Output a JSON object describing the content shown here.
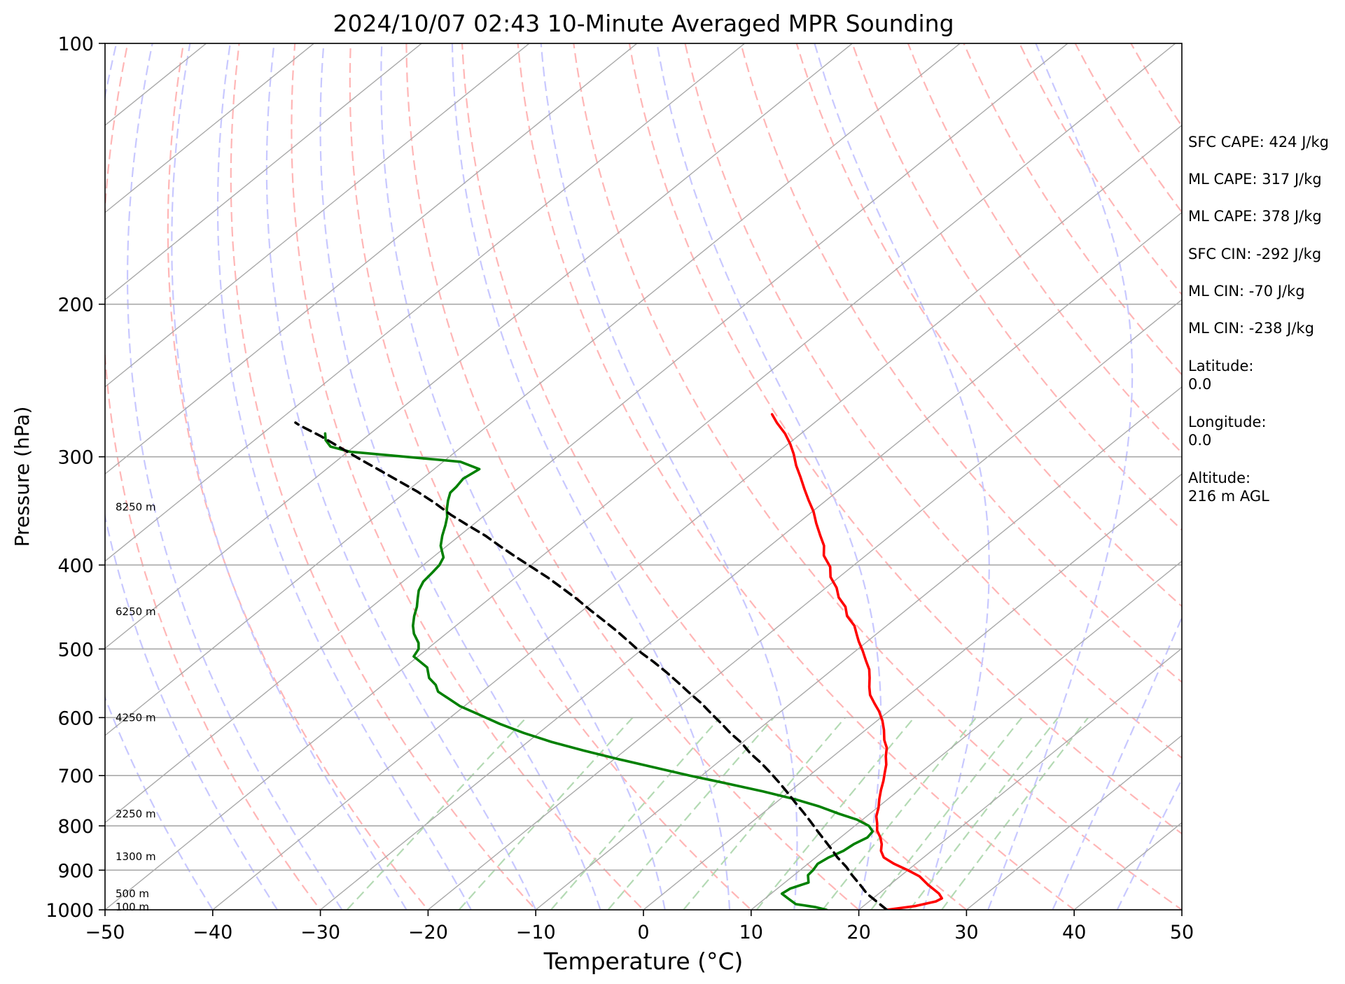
{
  "chart_data": {
    "type": "line",
    "subtype": "skew-t",
    "title": "2024/10/07 02:43 10-Minute Averaged MPR Sounding",
    "xlabel": "Temperature (°C)",
    "ylabel": "Pressure (hPa)",
    "xlim": [
      -50,
      50
    ],
    "ylim": [
      1000,
      100
    ],
    "y_scale": "log",
    "x_ticks": [
      -50,
      -40,
      -30,
      -20,
      -10,
      0,
      10,
      20,
      30,
      40,
      50
    ],
    "x_tick_labels": [
      "−50",
      "−40",
      "−30",
      "−20",
      "−10",
      "0",
      "10",
      "20",
      "30",
      "40",
      "50"
    ],
    "y_ticks": [
      1000,
      900,
      800,
      700,
      600,
      500,
      400,
      300,
      200,
      100
    ],
    "y_tick_labels": [
      "1000",
      "900",
      "800",
      "700",
      "600",
      "500",
      "400",
      "300",
      "200",
      "100"
    ],
    "grid": true,
    "height_labels": [
      {
        "text": "100 m",
        "pressure": 993
      },
      {
        "text": "500 m",
        "pressure": 958
      },
      {
        "text": "1300 m",
        "pressure": 868
      },
      {
        "text": "2250 m",
        "pressure": 775
      },
      {
        "text": "4250 m",
        "pressure": 600
      },
      {
        "text": "6250 m",
        "pressure": 453
      },
      {
        "text": "8250 m",
        "pressure": 343
      }
    ],
    "series": [
      {
        "key": "temperature",
        "color": "#ff0000",
        "style": "solid",
        "points": [
          [
            22.6,
            1000
          ],
          [
            24.8,
            990
          ],
          [
            26.2,
            978
          ],
          [
            26.4,
            970
          ],
          [
            25.6,
            958
          ],
          [
            23.5,
            935
          ],
          [
            21.8,
            915
          ],
          [
            20.0,
            900
          ],
          [
            18.0,
            885
          ],
          [
            16.3,
            870
          ],
          [
            15.3,
            855
          ],
          [
            14.6,
            840
          ],
          [
            13.7,
            825
          ],
          [
            12.6,
            810
          ],
          [
            11.8,
            795
          ],
          [
            10.9,
            780
          ],
          [
            10.1,
            762
          ],
          [
            9.2,
            745
          ],
          [
            8.3,
            727
          ],
          [
            7.5,
            710
          ],
          [
            6.7,
            695
          ],
          [
            5.9,
            680
          ],
          [
            4.9,
            665
          ],
          [
            4.0,
            650
          ],
          [
            2.9,
            637
          ],
          [
            1.7,
            620
          ],
          [
            0.5,
            605
          ],
          [
            -0.9,
            590
          ],
          [
            -2.2,
            578
          ],
          [
            -3.6,
            565
          ],
          [
            -4.6,
            553
          ],
          [
            -5.6,
            540
          ],
          [
            -6.6,
            528
          ],
          [
            -8.0,
            515
          ],
          [
            -9.4,
            502
          ],
          [
            -10.8,
            490
          ],
          [
            -11.9,
            480
          ],
          [
            -13.0,
            470
          ],
          [
            -14.8,
            458
          ],
          [
            -16.0,
            447
          ],
          [
            -17.7,
            436
          ],
          [
            -19.0,
            425
          ],
          [
            -20.8,
            413
          ],
          [
            -22.0,
            402
          ],
          [
            -23.9,
            390
          ],
          [
            -25.0,
            380
          ],
          [
            -26.5,
            370
          ],
          [
            -28.3,
            358
          ],
          [
            -29.9,
            347
          ],
          [
            -31.6,
            337
          ],
          [
            -33.3,
            327
          ],
          [
            -35.0,
            317
          ],
          [
            -36.8,
            307
          ],
          [
            -38.3,
            298
          ],
          [
            -39.8,
            290
          ],
          [
            -41.5,
            282
          ],
          [
            -43.5,
            274
          ],
          [
            -44.9,
            268
          ]
        ]
      },
      {
        "key": "dewpoint",
        "color": "#008000",
        "style": "solid",
        "points": [
          [
            17.0,
            1000
          ],
          [
            15.7,
            993
          ],
          [
            13.5,
            985
          ],
          [
            12.1,
            970
          ],
          [
            11.0,
            958
          ],
          [
            11.2,
            945
          ],
          [
            12.2,
            930
          ],
          [
            11.3,
            912
          ],
          [
            11.2,
            900
          ],
          [
            10.9,
            885
          ],
          [
            11.2,
            870
          ],
          [
            11.8,
            855
          ],
          [
            12.0,
            840
          ],
          [
            12.5,
            825
          ],
          [
            12.3,
            812
          ],
          [
            11.3,
            800
          ],
          [
            9.5,
            787
          ],
          [
            7.2,
            775
          ],
          [
            4.5,
            760
          ],
          [
            1.3,
            745
          ],
          [
            -2.5,
            730
          ],
          [
            -6.7,
            715
          ],
          [
            -11.1,
            700
          ],
          [
            -15.3,
            685
          ],
          [
            -19.6,
            670
          ],
          [
            -23.8,
            655
          ],
          [
            -27.8,
            640
          ],
          [
            -31.4,
            625
          ],
          [
            -34.7,
            610
          ],
          [
            -37.7,
            595
          ],
          [
            -40.4,
            582
          ],
          [
            -42.4,
            570
          ],
          [
            -44.1,
            560
          ],
          [
            -45.1,
            550
          ],
          [
            -46.5,
            540
          ],
          [
            -47.9,
            525
          ],
          [
            -50.4,
            510
          ],
          [
            -50.8,
            500
          ],
          [
            -51.5,
            492
          ],
          [
            -53.0,
            480
          ],
          [
            -54.0,
            470
          ],
          [
            -55.0,
            458
          ],
          [
            -55.8,
            447
          ],
          [
            -56.7,
            437
          ],
          [
            -57.5,
            428
          ],
          [
            -58.1,
            418
          ],
          [
            -58.3,
            408
          ],
          [
            -58.5,
            400
          ],
          [
            -59.0,
            392
          ],
          [
            -60.6,
            380
          ],
          [
            -61.6,
            370
          ],
          [
            -62.5,
            360
          ],
          [
            -63.3,
            352
          ],
          [
            -64.2,
            345
          ],
          [
            -65.1,
            337
          ],
          [
            -65.8,
            330
          ],
          [
            -65.9,
            325
          ],
          [
            -66.2,
            318
          ],
          [
            -65.8,
            310
          ],
          [
            -68.4,
            304
          ],
          [
            -79.8,
            296
          ],
          [
            -82.2,
            292
          ],
          [
            -83.4,
            287
          ],
          [
            -84.2,
            282
          ]
        ]
      },
      {
        "key": "parcel",
        "color": "#000000",
        "style": "dashed",
        "points": [
          [
            22.6,
            1000
          ],
          [
            18.9,
            958
          ],
          [
            17.2,
            935
          ],
          [
            15.4,
            912
          ],
          [
            13.9,
            892
          ],
          [
            12.0,
            870
          ],
          [
            10.5,
            851
          ],
          [
            9.0,
            833
          ],
          [
            7.2,
            812
          ],
          [
            5.4,
            791
          ],
          [
            3.6,
            771
          ],
          [
            1.8,
            752
          ],
          [
            -0.1,
            732
          ],
          [
            -2.0,
            713
          ],
          [
            -3.9,
            695
          ],
          [
            -5.9,
            677
          ],
          [
            -8.0,
            660
          ],
          [
            -10.0,
            642
          ],
          [
            -12.1,
            626
          ],
          [
            -14.2,
            609
          ],
          [
            -16.3,
            593
          ],
          [
            -18.4,
            577
          ],
          [
            -20.6,
            562
          ],
          [
            -22.8,
            547
          ],
          [
            -25.1,
            532
          ],
          [
            -27.4,
            518
          ],
          [
            -29.7,
            505
          ],
          [
            -32.0,
            491
          ],
          [
            -34.4,
            477
          ],
          [
            -36.8,
            464
          ],
          [
            -39.3,
            451
          ],
          [
            -41.8,
            438
          ],
          [
            -44.3,
            426
          ],
          [
            -46.9,
            414
          ],
          [
            -49.5,
            403
          ],
          [
            -52.2,
            392
          ],
          [
            -54.9,
            381
          ],
          [
            -57.6,
            370
          ],
          [
            -60.4,
            360
          ],
          [
            -63.2,
            350
          ],
          [
            -66.1,
            339
          ],
          [
            -69.0,
            329
          ],
          [
            -71.9,
            320
          ],
          [
            -74.9,
            311
          ],
          [
            -78.0,
            302
          ],
          [
            -81.1,
            293
          ],
          [
            -84.3,
            284
          ],
          [
            -87.5,
            276
          ],
          [
            -88.2,
            274
          ]
        ]
      }
    ],
    "background_lines": {
      "isotherm_color": "#a9a9a9",
      "dry_adiabat_color": "#ffb6b6",
      "moist_adiabat_color": "#c8c8ff",
      "mixing_ratio_color": "#b4dab4",
      "skew_deg_per_log": 99.4
    }
  },
  "info_panel": {
    "sfc_cape": "SFC CAPE: 424 J/kg",
    "ml_cape_1": "ML CAPE: 317 J/kg",
    "ml_cape_2": "ML CAPE: 378 J/kg",
    "sfc_cin": "SFC CIN: -292 J/kg",
    "ml_cin_1": "ML CIN: -70 J/kg",
    "ml_cin_2": "ML CIN: -238 J/kg",
    "latitude_label": "Latitude:",
    "latitude_value": "0.0",
    "longitude_label": "Longitude:",
    "longitude_value": "0.0",
    "altitude_label": "Altitude:",
    "altitude_value": "216 m AGL"
  }
}
